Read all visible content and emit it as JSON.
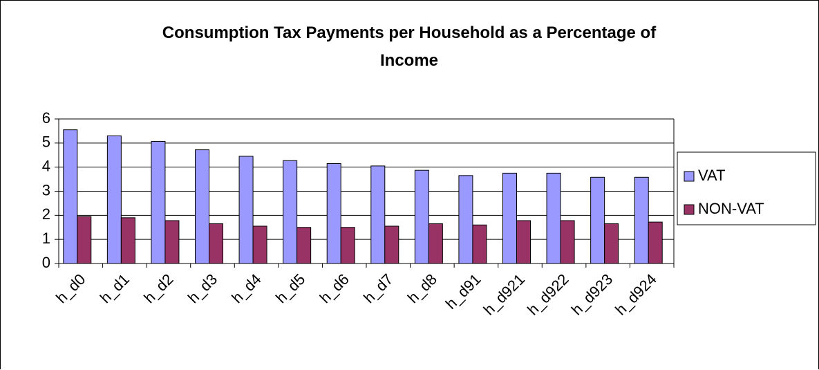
{
  "chart_data": {
    "type": "bar",
    "title": "Consumption Tax Payments per Household as a Percentage of Income",
    "categories": [
      "h_d0",
      "h_d1",
      "h_d2",
      "h_d3",
      "h_d4",
      "h_d5",
      "h_d6",
      "h_d7",
      "h_d8",
      "h_d91",
      "h_d921",
      "h_d922",
      "h_d923",
      "h_d924"
    ],
    "series": [
      {
        "name": "VAT",
        "color": "#9999ff",
        "values": [
          5.55,
          5.3,
          5.07,
          4.72,
          4.45,
          4.27,
          4.15,
          4.05,
          3.87,
          3.65,
          3.75,
          3.75,
          3.58,
          3.58
        ]
      },
      {
        "name": "NON-VAT",
        "color": "#993366",
        "values": [
          1.95,
          1.9,
          1.78,
          1.65,
          1.55,
          1.5,
          1.5,
          1.55,
          1.65,
          1.6,
          1.78,
          1.78,
          1.65,
          1.72
        ]
      }
    ],
    "ylim": [
      0,
      6
    ],
    "yticks": [
      0,
      1,
      2,
      3,
      4,
      5,
      6
    ],
    "grid": true,
    "legend": "right"
  }
}
